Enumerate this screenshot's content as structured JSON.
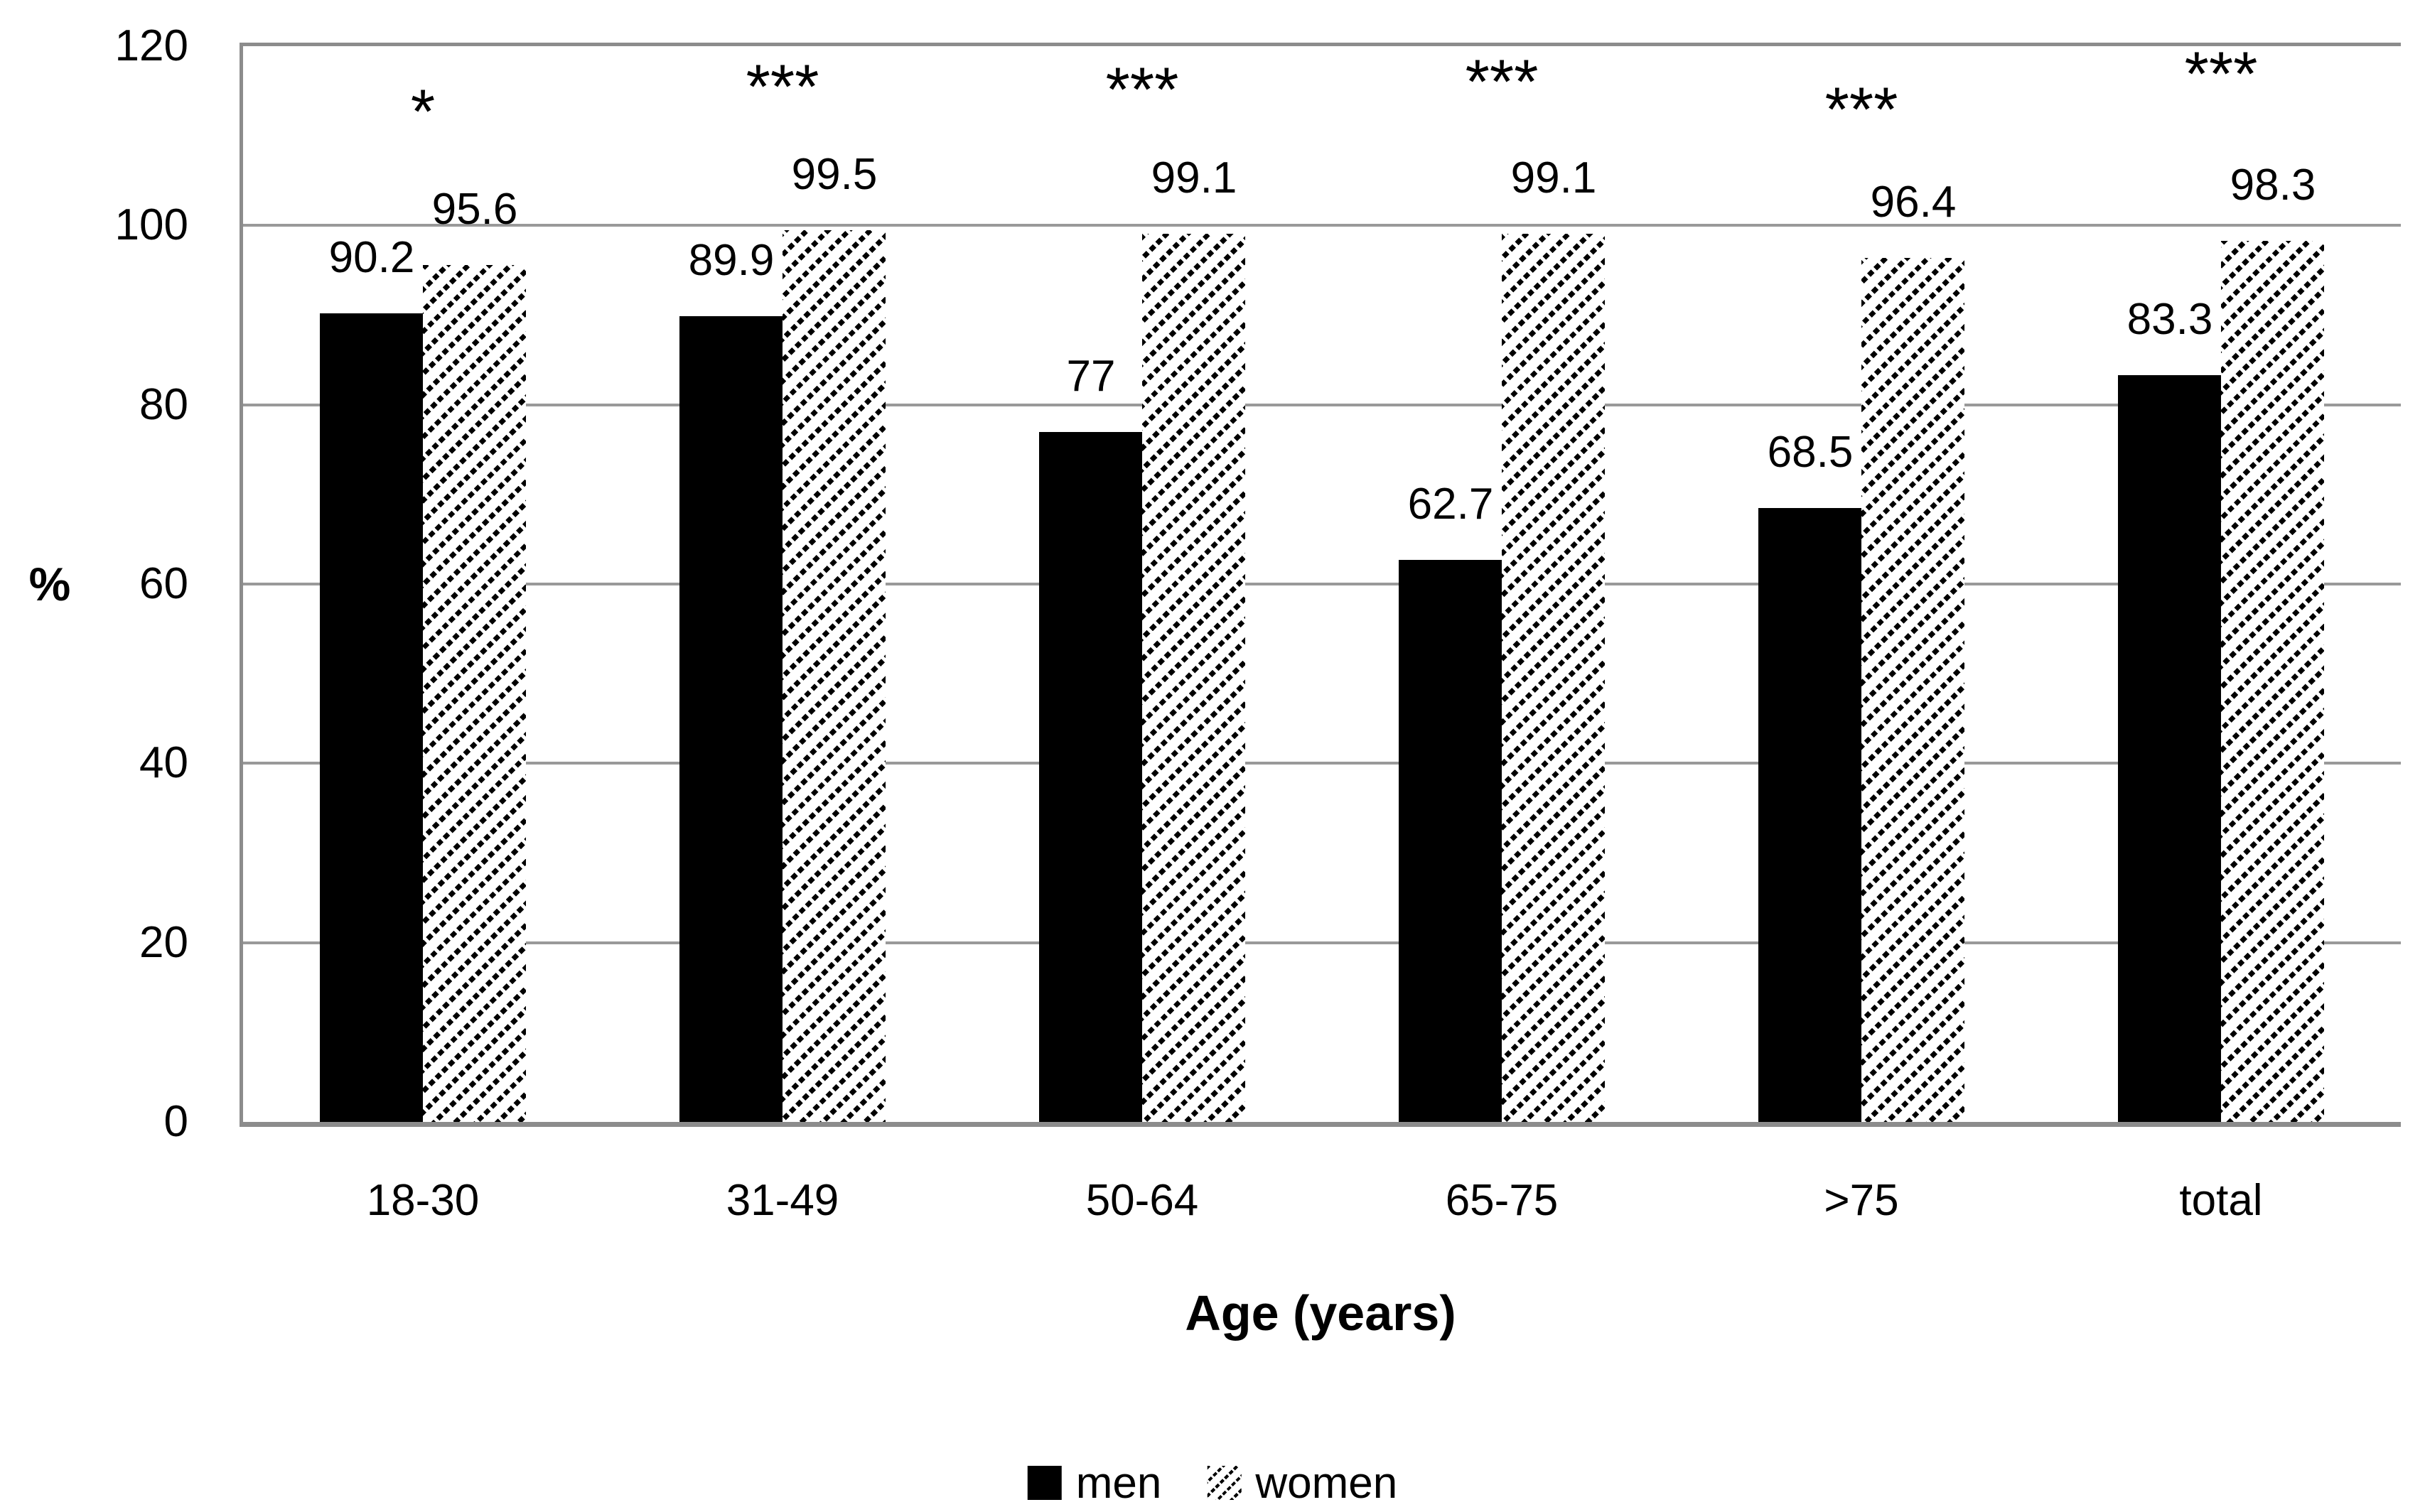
{
  "chart_data": {
    "type": "bar",
    "categories": [
      "18-30",
      "31-49",
      "50-64",
      "65-75",
      ">75",
      "total"
    ],
    "series": [
      {
        "name": "men",
        "values": [
          90.2,
          89.9,
          77,
          62.7,
          68.5,
          83.3
        ],
        "labels": [
          "90.2",
          "89.9",
          "77",
          "62.7",
          "68.5",
          "83.3"
        ],
        "style": "solid-black"
      },
      {
        "name": "women",
        "values": [
          95.6,
          99.5,
          99.1,
          99.1,
          96.4,
          98.3
        ],
        "labels": [
          "95.6",
          "99.5",
          "99.1",
          "99.1",
          "96.4",
          "98.3"
        ],
        "style": "diagonal-hatch"
      }
    ],
    "significance": [
      "*",
      "***",
      "***",
      "***",
      "***",
      "***"
    ],
    "xlabel": "Age (years)",
    "ylabel": "%",
    "ylim": [
      0,
      120
    ],
    "yticks": [
      "0",
      "20",
      "40",
      "60",
      "80",
      "100",
      "120"
    ],
    "grid": "horizontal-only",
    "legend_position": "bottom-center",
    "colors": {
      "men_bar": "#000000",
      "women_hatch": "#000000",
      "background": "#ffffff",
      "gridline": "#999999",
      "axis": "#8c8c8c",
      "text": "#000000"
    }
  }
}
